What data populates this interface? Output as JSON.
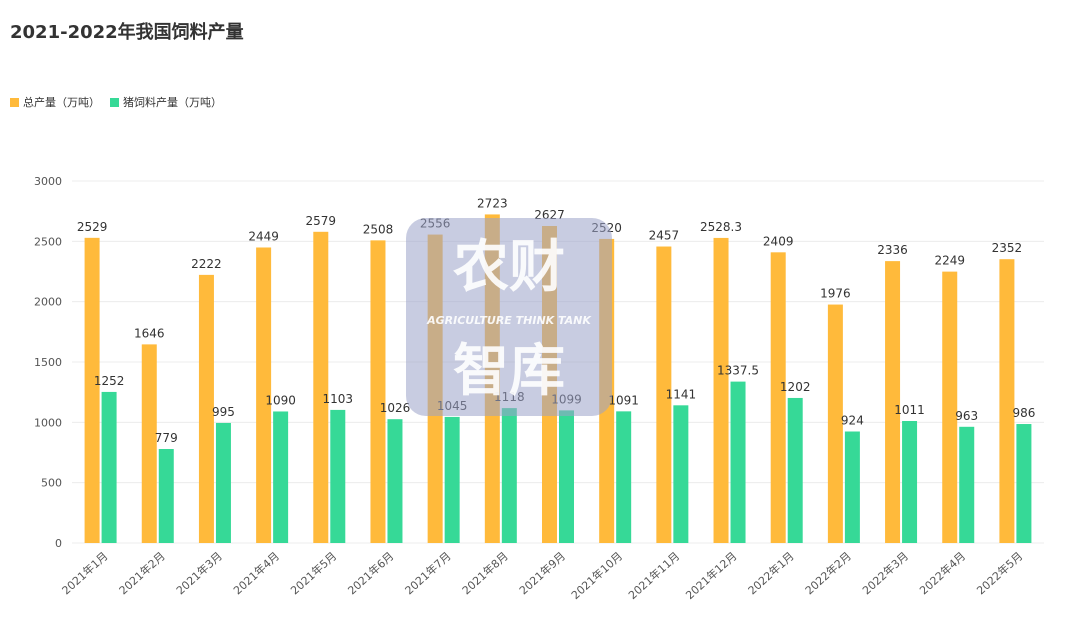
{
  "title": "2021-2022年我国饲料产量",
  "watermark": {
    "text_top": "农财",
    "text_sub": "AGRICULTURE THINK TANK",
    "text_bottom": "智库"
  },
  "colors": {
    "total": "#FFBA3B",
    "pig": "#36D997",
    "grid": "#ECECEC",
    "axis_text": "#555555",
    "label_text": "#333333",
    "watermark_bg": "#9AA2C8"
  },
  "chart_data": {
    "type": "bar",
    "categories": [
      "2021年1月",
      "2021年2月",
      "2021年3月",
      "2021年4月",
      "2021年5月",
      "2021年6月",
      "2021年7月",
      "2021年8月",
      "2021年9月",
      "2021年10月",
      "2021年11月",
      "2021年12月",
      "2022年1月",
      "2022年2月",
      "2022年3月",
      "2022年4月",
      "2022年5月"
    ],
    "series": [
      {
        "name": "总产量（万吨）",
        "values": [
          2529,
          1646,
          2222,
          2449,
          2579,
          2508,
          2556,
          2723,
          2627,
          2520,
          2457,
          2528.3,
          2409,
          1976,
          2336,
          2249,
          2352
        ]
      },
      {
        "name": "猪饲料产量（万吨）",
        "values": [
          1252,
          779,
          995,
          1090,
          1103,
          1026,
          1045,
          1118,
          1099,
          1091,
          1141,
          1337.5,
          1202,
          924,
          1011,
          963,
          986
        ]
      }
    ],
    "yticks": [
      0,
      500,
      1000,
      1500,
      2000,
      2500,
      3000
    ],
    "ylim": [
      0,
      3000
    ],
    "grid": true,
    "legend_position": "top-left"
  }
}
